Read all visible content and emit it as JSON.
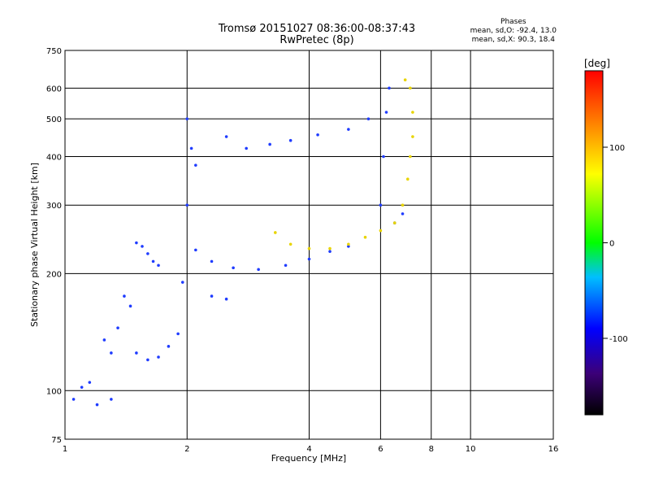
{
  "header": {
    "title_line1": "Tromsø 20151027 08:36:00-08:37:43",
    "title_line2": "RwPretec (8p)"
  },
  "phases": {
    "heading": "Phases",
    "line_o": "mean, sd,O: -92.4, 13.0",
    "line_x": "mean, sd,X:  90.3, 18.4"
  },
  "chart_data": {
    "type": "scatter",
    "title": "Tromsø 20151027 08:36:00-08:37:43",
    "subtitle": "RwPretec (8p)",
    "xlabel": "Frequency [MHz]",
    "ylabel": "Stationary phase Virtual Height [km]",
    "x_scale": "log",
    "y_scale": "log",
    "xlim": [
      1,
      16
    ],
    "ylim": [
      75,
      750
    ],
    "x_ticks": [
      1,
      2,
      4,
      6,
      8,
      10,
      16
    ],
    "y_ticks": [
      75,
      100,
      200,
      300,
      400,
      500,
      600,
      750
    ],
    "grid": true,
    "colorbar": {
      "label": "[deg]",
      "range": [
        -180,
        180
      ],
      "ticks": [
        -100,
        0,
        100
      ]
    },
    "series": [
      {
        "name": "O",
        "points": [
          [
            1.05,
            95
          ],
          [
            1.1,
            102
          ],
          [
            1.15,
            105
          ],
          [
            1.2,
            92
          ],
          [
            1.3,
            95
          ],
          [
            1.25,
            135
          ],
          [
            1.3,
            125
          ],
          [
            1.35,
            145
          ],
          [
            1.4,
            175
          ],
          [
            1.45,
            165
          ],
          [
            1.5,
            240
          ],
          [
            1.55,
            235
          ],
          [
            1.6,
            225
          ],
          [
            1.65,
            215
          ],
          [
            1.7,
            210
          ],
          [
            1.5,
            125
          ],
          [
            1.6,
            120
          ],
          [
            1.7,
            122
          ],
          [
            1.8,
            130
          ],
          [
            1.9,
            140
          ],
          [
            1.95,
            190
          ],
          [
            2.0,
            300
          ],
          [
            2.0,
            500
          ],
          [
            2.05,
            420
          ],
          [
            2.1,
            380
          ],
          [
            2.1,
            230
          ],
          [
            2.3,
            215
          ],
          [
            2.6,
            207
          ],
          [
            3.0,
            205
          ],
          [
            3.5,
            210
          ],
          [
            4.0,
            218
          ],
          [
            4.5,
            228
          ],
          [
            5.0,
            235
          ],
          [
            2.5,
            450
          ],
          [
            2.8,
            420
          ],
          [
            3.2,
            430
          ],
          [
            3.6,
            440
          ],
          [
            4.2,
            455
          ],
          [
            5.0,
            470
          ],
          [
            5.6,
            500
          ],
          [
            2.3,
            175
          ],
          [
            2.5,
            172
          ],
          [
            6.0,
            300
          ],
          [
            6.1,
            400
          ],
          [
            6.2,
            520
          ],
          [
            6.3,
            600
          ],
          [
            6.5,
            270
          ],
          [
            6.8,
            285
          ]
        ]
      },
      {
        "name": "X",
        "points": [
          [
            3.3,
            255
          ],
          [
            3.6,
            238
          ],
          [
            4.0,
            232
          ],
          [
            4.5,
            232
          ],
          [
            5.0,
            238
          ],
          [
            5.5,
            248
          ],
          [
            6.0,
            258
          ],
          [
            6.5,
            270
          ],
          [
            6.8,
            300
          ],
          [
            7.0,
            350
          ],
          [
            7.1,
            400
          ],
          [
            7.2,
            450
          ],
          [
            7.2,
            520
          ],
          [
            7.1,
            600
          ],
          [
            6.9,
            630
          ]
        ]
      }
    ]
  }
}
